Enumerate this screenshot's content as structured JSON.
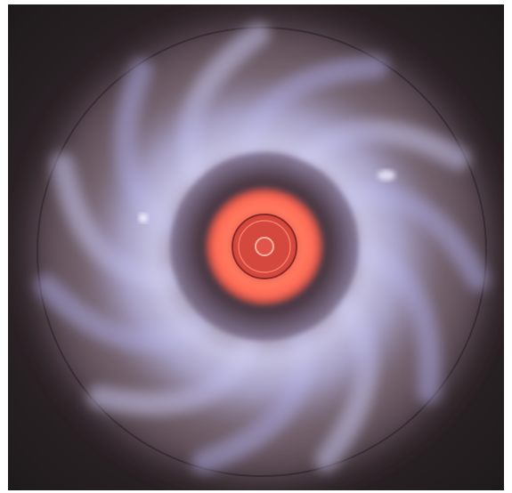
{
  "image": {
    "subject": "flame-photograph",
    "colors": {
      "background": "#2a2224",
      "outer_glow": "#9a7d86",
      "flame_blue": "#b4b4e6",
      "flame_white": "#e6e4f4",
      "dark_ring": "#4a3a44",
      "core_orange": "#ff6a55",
      "core_center": "#c0403a"
    }
  }
}
